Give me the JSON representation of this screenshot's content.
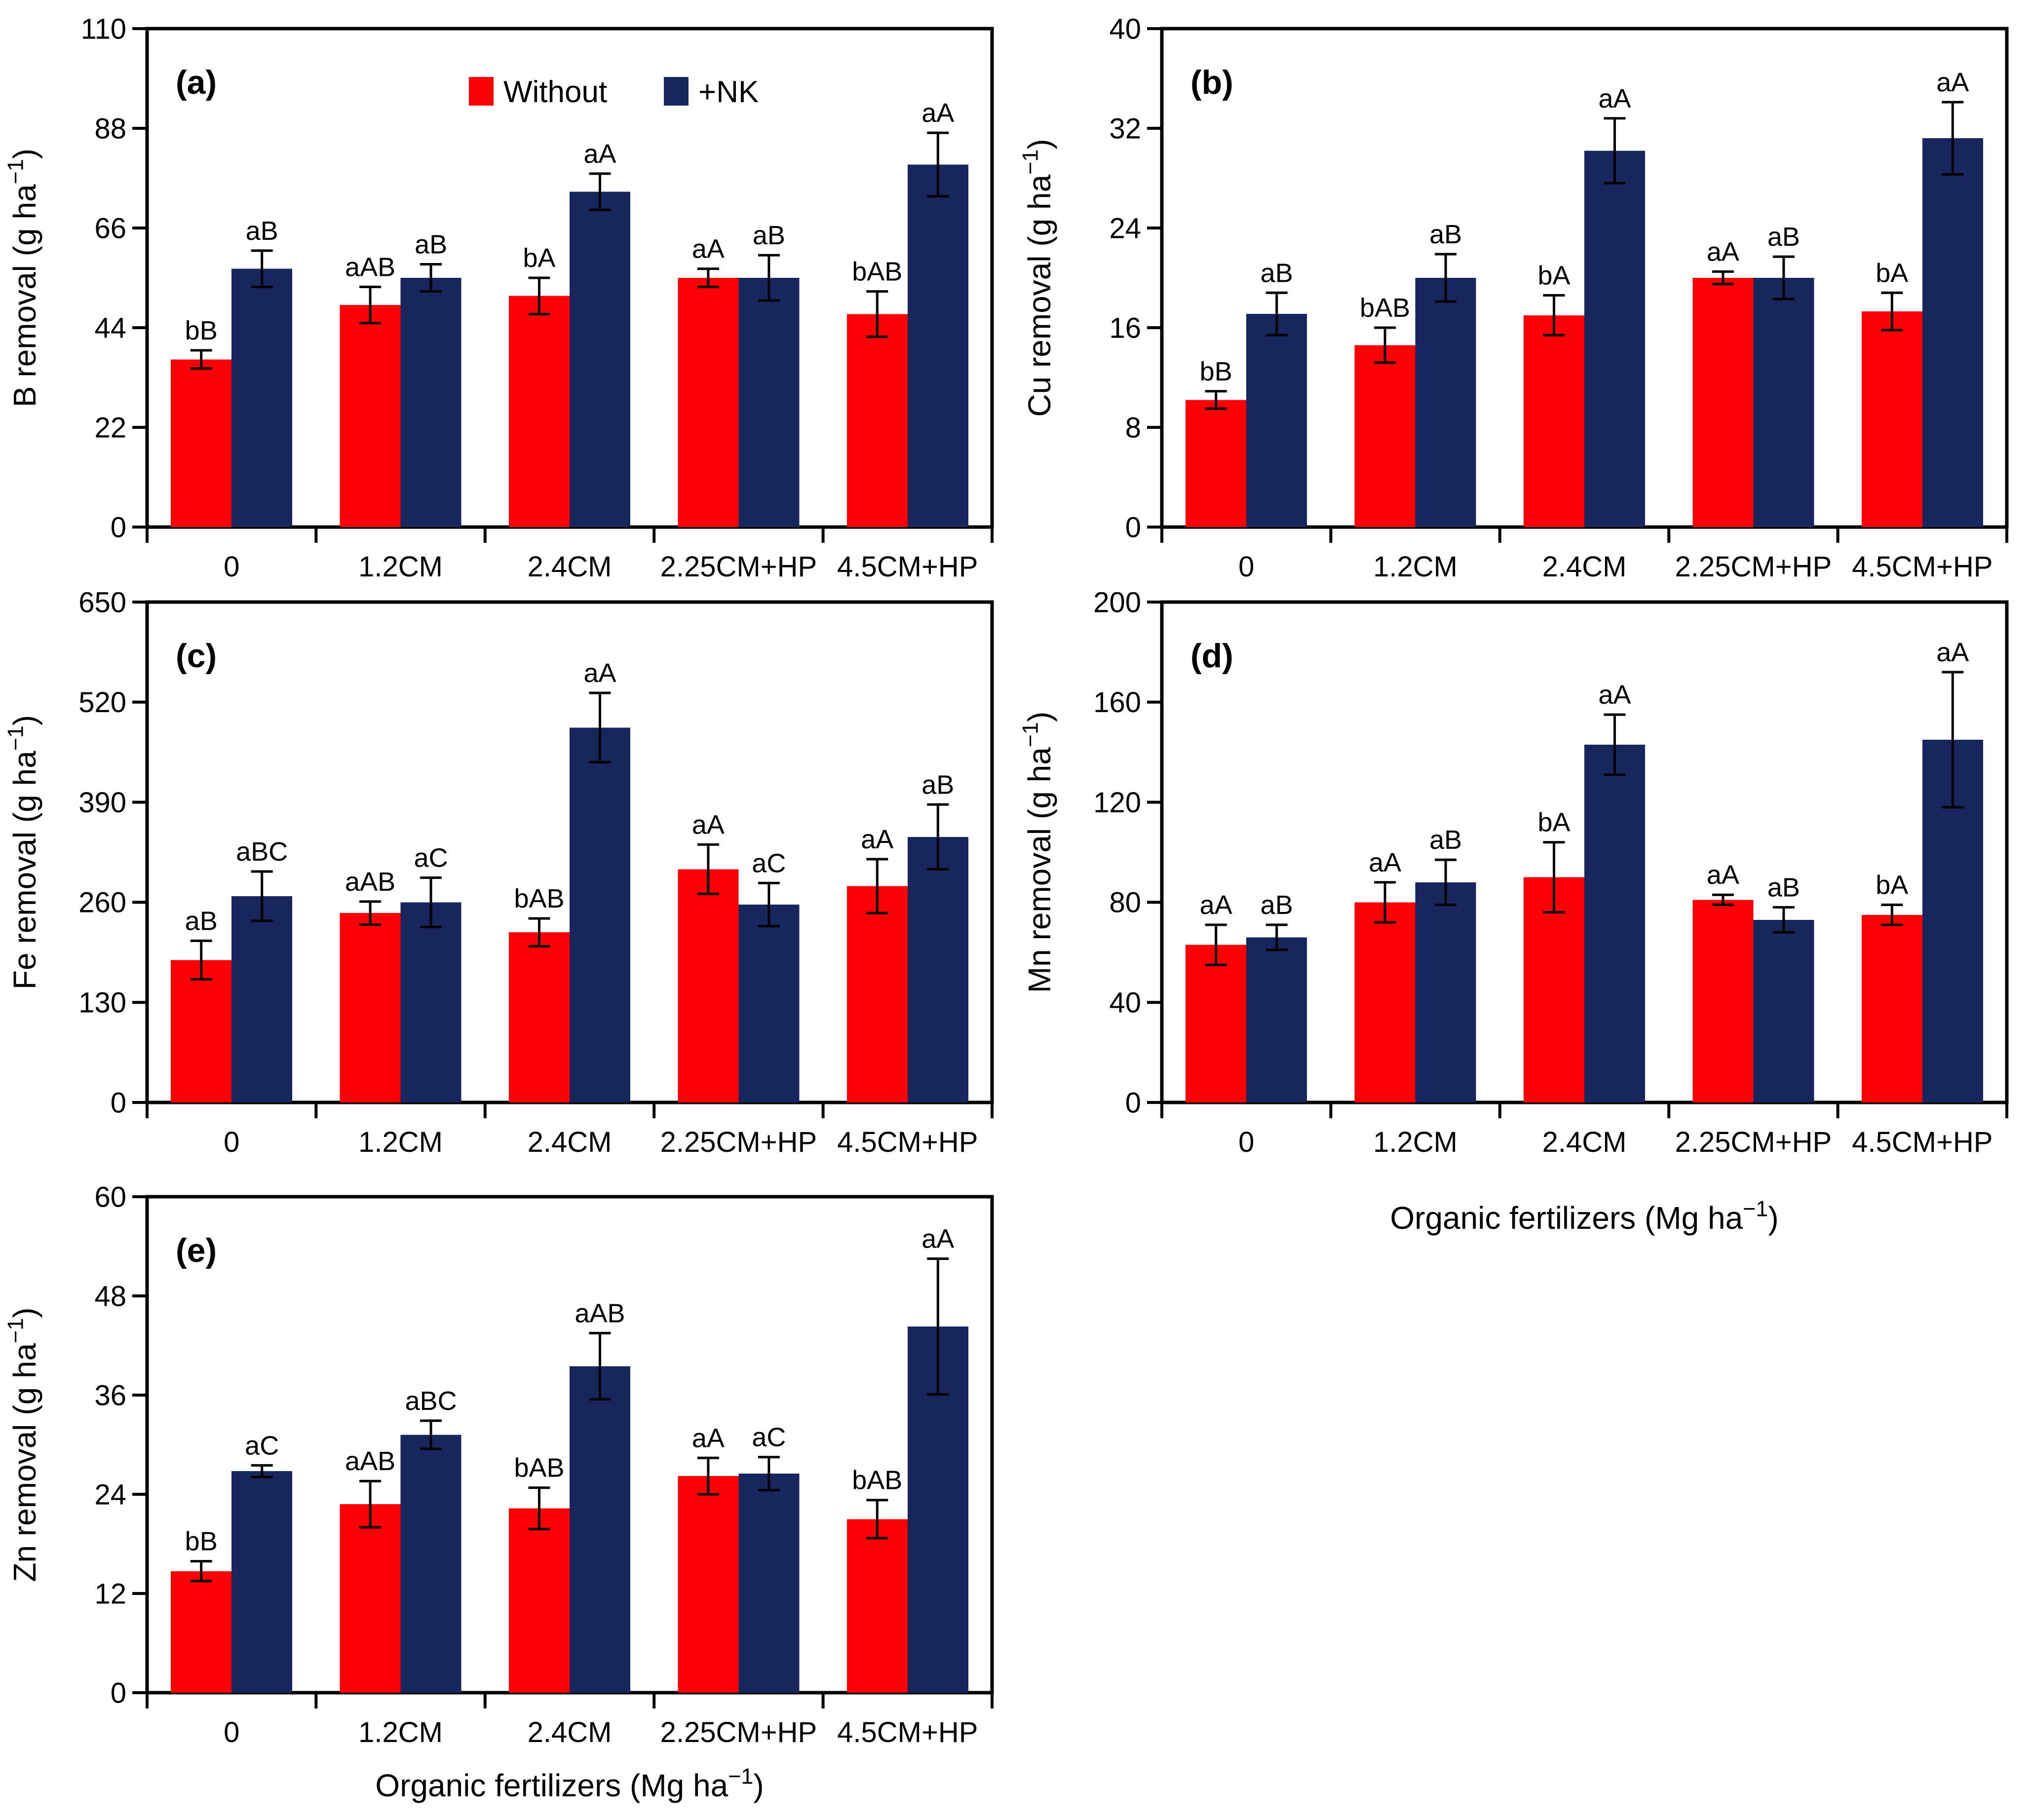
{
  "figure": {
    "background": "#ffffff",
    "series_colors": {
      "without": "#fb0105",
      "nk": "#17265c"
    },
    "axis_color": "#000000"
  },
  "legend": {
    "items": [
      {
        "key": "without",
        "label": "Without",
        "color": "#fb0105"
      },
      {
        "key": "nk",
        "label": "+NK",
        "color": "#17265c"
      }
    ]
  },
  "x_axis_title": {
    "prefix": "Organic fertilizers (Mg ha",
    "sup": "−1",
    "suffix": ")"
  },
  "chart_data": [
    {
      "id": "a",
      "type": "bar",
      "panel_label": "(a)",
      "ylabel": {
        "prefix": "B removal (g ha",
        "sup": "−1",
        "suffix": ")"
      },
      "ylim": [
        0,
        110
      ],
      "yticks": [
        0,
        22,
        44,
        66,
        88,
        110
      ],
      "categories": [
        "0",
        "1.2CM",
        "2.4CM",
        "2.25CM+HP",
        "4.5CM+HP"
      ],
      "show_legend": true,
      "show_xtitle": false,
      "series": [
        {
          "name": "Without",
          "key": "without",
          "values": [
            37,
            49,
            51,
            55,
            47
          ],
          "errors": [
            2,
            4,
            4,
            2,
            5
          ],
          "sig_labels": [
            "bB",
            "aAB",
            "bA",
            "aA",
            "bAB"
          ]
        },
        {
          "name": "+NK",
          "key": "nk",
          "values": [
            57,
            55,
            74,
            55,
            80
          ],
          "errors": [
            4,
            3,
            4,
            5,
            7
          ],
          "sig_labels": [
            "aB",
            "aB",
            "aA",
            "aB",
            "aA"
          ]
        }
      ]
    },
    {
      "id": "b",
      "type": "bar",
      "panel_label": "(b)",
      "ylabel": {
        "prefix": "Cu removal (g ha",
        "sup": "−1",
        "suffix": ")"
      },
      "ylim": [
        0,
        40
      ],
      "yticks": [
        0,
        8,
        16,
        24,
        32,
        40
      ],
      "categories": [
        "0",
        "1.2CM",
        "2.4CM",
        "2.25CM+HP",
        "4.5CM+HP"
      ],
      "show_legend": false,
      "show_xtitle": false,
      "series": [
        {
          "name": "Without",
          "key": "without",
          "values": [
            10.2,
            14.6,
            17,
            20,
            17.3
          ],
          "errors": [
            0.7,
            1.4,
            1.6,
            0.5,
            1.5
          ],
          "sig_labels": [
            "bB",
            "bAB",
            "bA",
            "aA",
            "bA"
          ]
        },
        {
          "name": "+NK",
          "key": "nk",
          "values": [
            17.1,
            20,
            30.2,
            20,
            31.2
          ],
          "errors": [
            1.7,
            1.9,
            2.6,
            1.7,
            2.9
          ],
          "sig_labels": [
            "aB",
            "aB",
            "aA",
            "aB",
            "aA"
          ]
        }
      ]
    },
    {
      "id": "c",
      "type": "bar",
      "panel_label": "(c)",
      "ylabel": {
        "prefix": "Fe removal (g ha",
        "sup": "−1",
        "suffix": ")"
      },
      "ylim": [
        0,
        650
      ],
      "yticks": [
        0,
        130,
        260,
        390,
        520,
        650
      ],
      "categories": [
        "0",
        "1.2CM",
        "2.4CM",
        "2.25CM+HP",
        "4.5CM+HP"
      ],
      "show_legend": false,
      "show_xtitle": false,
      "series": [
        {
          "name": "Without",
          "key": "without",
          "values": [
            185,
            246,
            221,
            303,
            281
          ],
          "errors": [
            25,
            15,
            18,
            32,
            35
          ],
          "sig_labels": [
            "aB",
            "aAB",
            "bAB",
            "aA",
            "aA"
          ]
        },
        {
          "name": "+NK",
          "key": "nk",
          "values": [
            268,
            260,
            487,
            257,
            345
          ],
          "errors": [
            32,
            32,
            45,
            28,
            42
          ],
          "sig_labels": [
            "aBC",
            "aC",
            "aA",
            "aC",
            "aB"
          ]
        }
      ]
    },
    {
      "id": "d",
      "type": "bar",
      "panel_label": "(d)",
      "ylabel": {
        "prefix": "Mn removal (g ha",
        "sup": "−1",
        "suffix": ")"
      },
      "ylim": [
        0,
        200
      ],
      "yticks": [
        0,
        40,
        80,
        120,
        160,
        200
      ],
      "categories": [
        "0",
        "1.2CM",
        "2.4CM",
        "2.25CM+HP",
        "4.5CM+HP"
      ],
      "show_legend": false,
      "show_xtitle": true,
      "series": [
        {
          "name": "Without",
          "key": "without",
          "values": [
            63,
            80,
            90,
            81,
            75
          ],
          "errors": [
            8,
            8,
            14,
            2,
            4
          ],
          "sig_labels": [
            "aA",
            "aA",
            "bA",
            "aA",
            "bA"
          ]
        },
        {
          "name": "+NK",
          "key": "nk",
          "values": [
            66,
            88,
            143,
            73,
            145
          ],
          "errors": [
            5,
            9,
            12,
            5,
            27
          ],
          "sig_labels": [
            "aB",
            "aB",
            "aA",
            "aB",
            "aA"
          ]
        }
      ]
    },
    {
      "id": "e",
      "type": "bar",
      "panel_label": "(e)",
      "ylabel": {
        "prefix": "Zn removal (g ha",
        "sup": "−1",
        "suffix": ")"
      },
      "ylim": [
        0,
        60
      ],
      "yticks": [
        0,
        12,
        24,
        36,
        48,
        60
      ],
      "categories": [
        "0",
        "1.2CM",
        "2.4CM",
        "2.25CM+HP",
        "4.5CM+HP"
      ],
      "show_legend": false,
      "show_xtitle": true,
      "series": [
        {
          "name": "Without",
          "key": "without",
          "values": [
            14.7,
            22.8,
            22.3,
            26.2,
            21
          ],
          "errors": [
            1.2,
            2.8,
            2.5,
            2.2,
            2.3
          ],
          "sig_labels": [
            "bB",
            "aAB",
            "bAB",
            "aA",
            "bAB"
          ]
        },
        {
          "name": "+NK",
          "key": "nk",
          "values": [
            26.8,
            31.2,
            39.5,
            26.5,
            44.3
          ],
          "errors": [
            0.7,
            1.7,
            4,
            2,
            8.2
          ],
          "sig_labels": [
            "aC",
            "aBC",
            "aAB",
            "aC",
            "aA"
          ]
        }
      ]
    }
  ]
}
